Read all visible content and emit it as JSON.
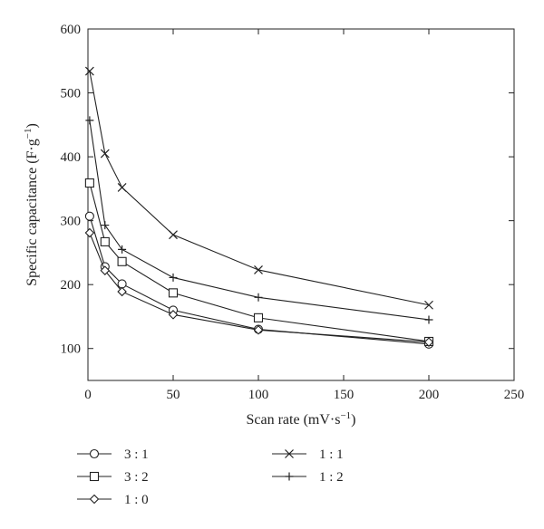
{
  "chart_data": {
    "type": "line",
    "xlabel": "Scan rate (mV·s",
    "xlabel_sup": "−1",
    "xlabel_end": ")",
    "ylabel": "Specific capacitance (F·g",
    "ylabel_sup": "−1",
    "ylabel_end": ")",
    "xlim": [
      0,
      250
    ],
    "ylim": [
      50,
      600
    ],
    "x_ticks": [
      "0",
      "50",
      "100",
      "150",
      "200",
      "250"
    ],
    "y_ticks": [
      "100",
      "200",
      "300",
      "400",
      "500",
      "600"
    ],
    "x": [
      1,
      10,
      20,
      50,
      100,
      200
    ],
    "series": [
      {
        "name": "3 : 1",
        "marker": "circle",
        "values": [
          307,
          228,
          201,
          160,
          130,
          107
        ]
      },
      {
        "name": "3 : 2",
        "marker": "square",
        "values": [
          359,
          267,
          236,
          187,
          148,
          111
        ]
      },
      {
        "name": "1 : 0",
        "marker": "diamond",
        "values": [
          281,
          222,
          189,
          153,
          129,
          110
        ]
      },
      {
        "name": "1 : 1",
        "marker": "x",
        "values": [
          534,
          405,
          352,
          278,
          223,
          168
        ]
      },
      {
        "name": "1 : 2",
        "marker": "plus",
        "values": [
          457,
          293,
          255,
          211,
          180,
          145
        ]
      }
    ],
    "grid": false,
    "legend_position": "bottom"
  }
}
